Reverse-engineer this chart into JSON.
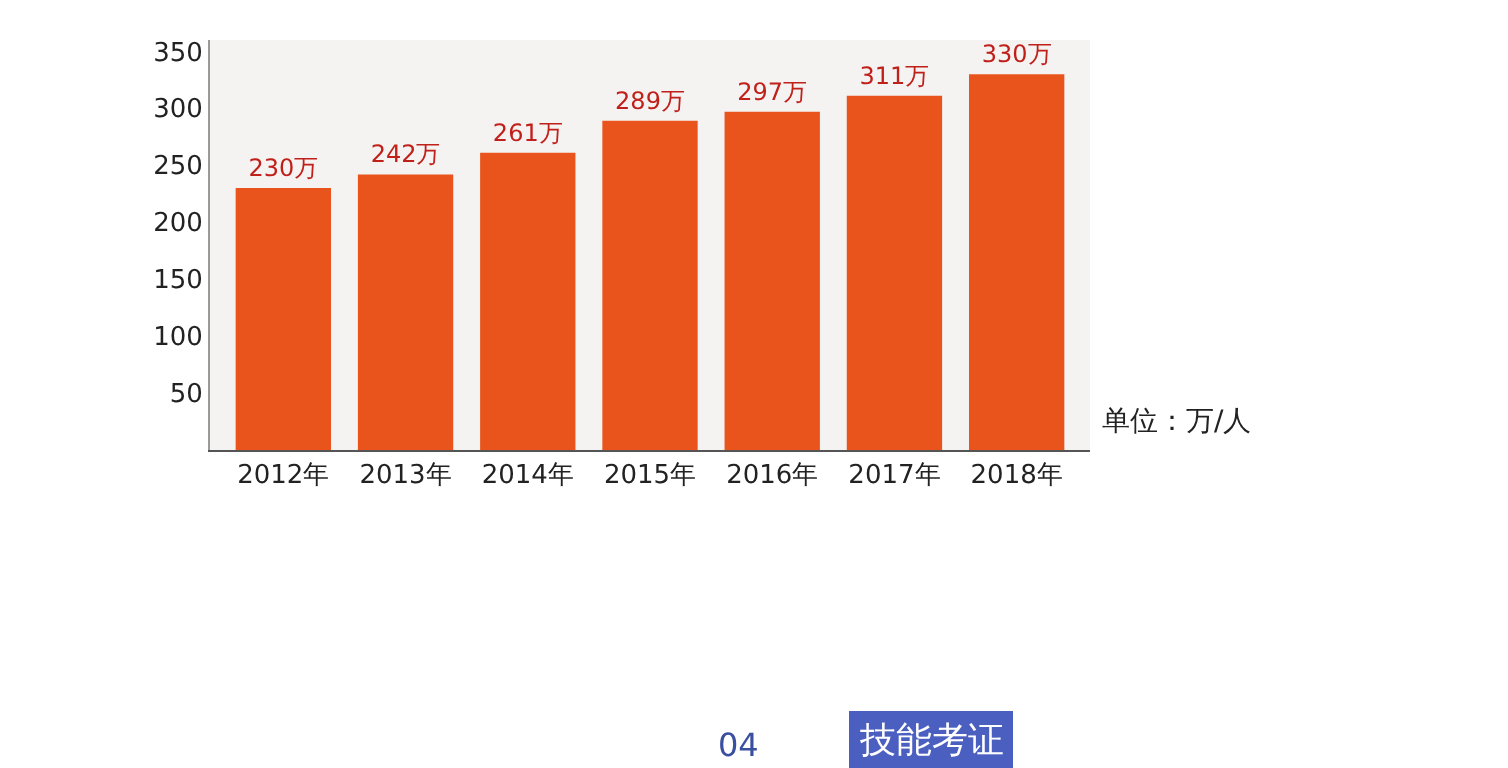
{
  "chart_data": {
    "type": "bar",
    "categories": [
      "2012年",
      "2013年",
      "2014年",
      "2015年",
      "2016年",
      "2017年",
      "2018年"
    ],
    "values": [
      230,
      242,
      261,
      289,
      297,
      311,
      330
    ],
    "value_labels": [
      "230万",
      "242万",
      "261万",
      "289万",
      "297万",
      "311万",
      "330万"
    ],
    "color": "#e8541c",
    "ylim": [
      0,
      360
    ],
    "yticks": [
      50,
      100,
      150,
      200,
      250,
      300,
      350
    ],
    "grid": false,
    "legend": false,
    "annotations": [
      "单位：万/人",
      "04",
      "技能考证"
    ]
  }
}
